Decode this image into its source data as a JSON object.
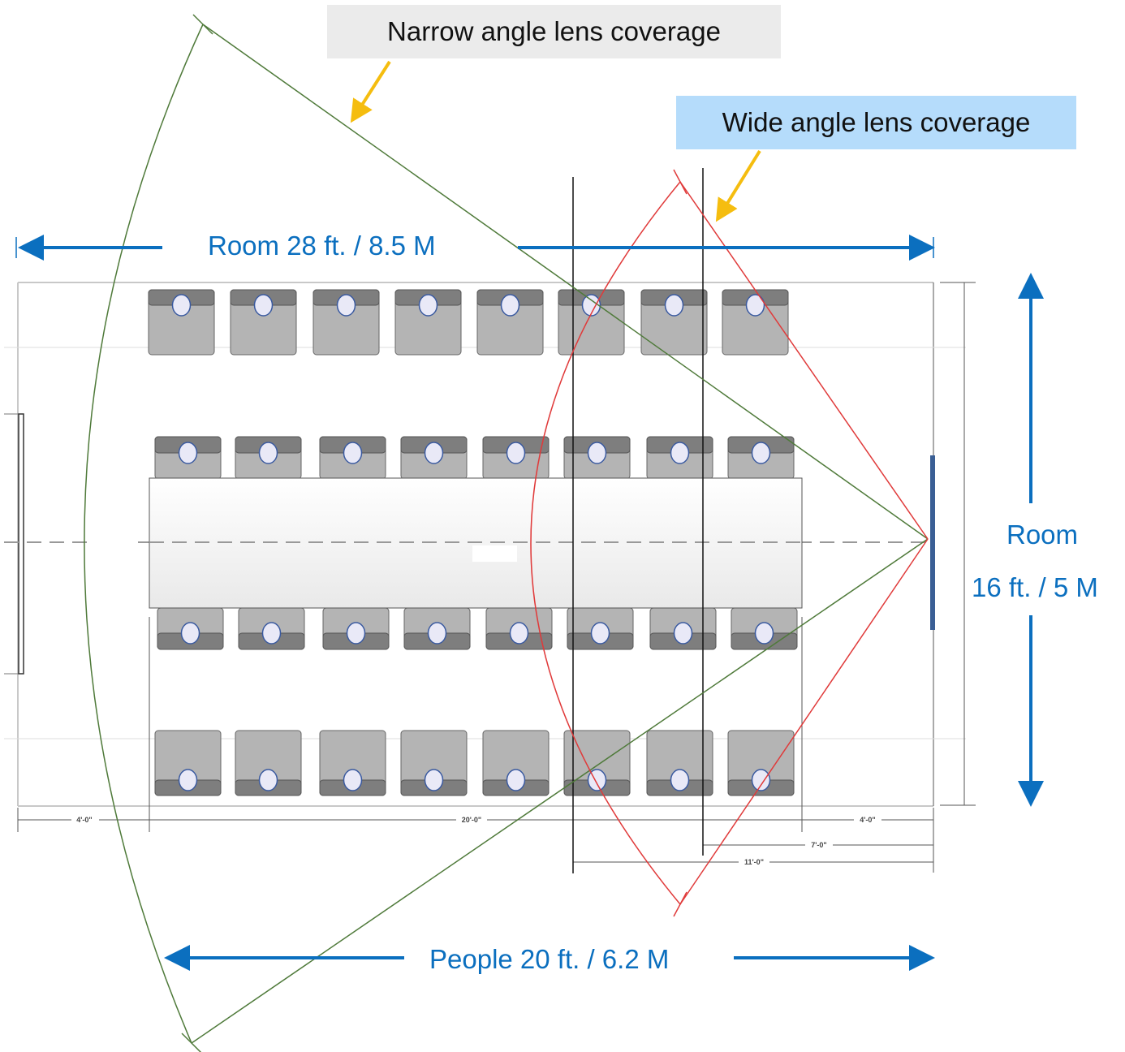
{
  "callouts": {
    "narrow": "Narrow angle lens coverage",
    "wide": "Wide angle lens coverage"
  },
  "dimensions": {
    "room_length": "Room 28 ft. /  8.5 M",
    "people_width": "People 20 ft. /  6.2 M",
    "room_width_line1": "Room",
    "room_width_line2": "16 ft. /  5 M"
  },
  "drawing_dims": {
    "left": "4'-0\"",
    "middle": "20'-0\"",
    "right": "4'-0\"",
    "camera_7": "7'-0\"",
    "camera_11": "11'-0\""
  },
  "colors": {
    "dimension_arrow": "#0b6fbf",
    "narrow_lens": "#4f7a3a",
    "wide_lens": "#e03a3a",
    "callout_pointer": "#f5bd0f",
    "narrow_callout_bg": "#ebebeb",
    "wide_callout_bg": "#b5dcfb",
    "chair": "#b4b4b4",
    "chair_back": "#7e7e7e"
  },
  "icons": {
    "chair": "chair-icon",
    "camera": "camera-icon",
    "display": "display-icon"
  }
}
